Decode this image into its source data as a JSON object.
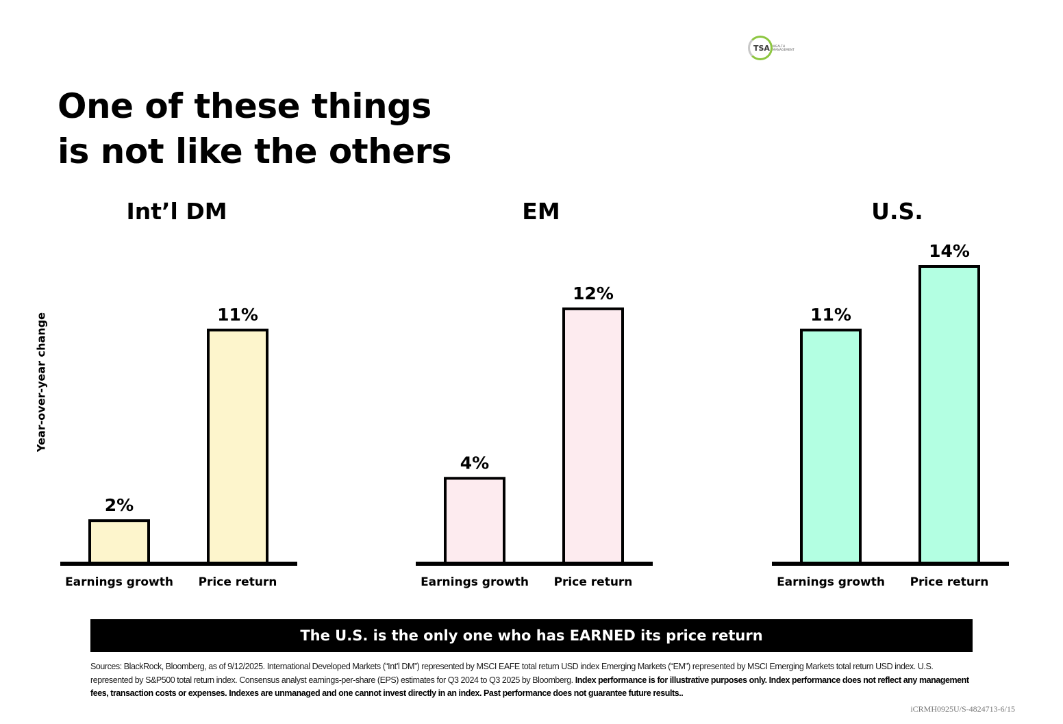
{
  "logo": {
    "text": "TSA",
    "subtext": "WEALTH MANAGEMENT"
  },
  "title": {
    "line1": "One of these things",
    "line2": "is not like the others"
  },
  "y_axis_label": "Year-over-year change",
  "banner": "The U.S. is the only one who has EARNED its price return",
  "sources": {
    "regular": "Sources: BlackRock, Bloomberg, as of 9/12/2025. International Developed Markets (“Int’l DM”) represented by MSCI EAFE total return USD index Emerging Markets (“EM”) represented by MSCI Emerging Markets total return USD index. U.S. represented by S&P500 total return index. Consensus analyst earnings-per-share (EPS) estimates for  Q3 2024 to Q3 2025 by Bloomberg. ",
    "bold": "Index performance is for illustrative purposes only.  Index performance does not reflect any management fees, transaction costs or expenses. Indexes are unmanaged and one cannot invest directly in an index. Past performance does not guarantee future results.."
  },
  "code": "iCRMH0925U/S-4824713-6/15",
  "colors": {
    "intl_dm": "#fdf5cc",
    "em": "#fdebef",
    "us": "#b3ffe2",
    "stroke": "#000000"
  },
  "chart_data": [
    {
      "type": "bar",
      "title": "Int’l DM",
      "categories": [
        "Earnings growth",
        "Price return"
      ],
      "values": [
        2,
        11
      ],
      "value_labels": [
        "2%",
        "11%"
      ],
      "color": "#fdf5cc",
      "ylabel": "Year-over-year change",
      "ylim": [
        0,
        14
      ]
    },
    {
      "type": "bar",
      "title": "EM",
      "categories": [
        "Earnings growth",
        "Price return"
      ],
      "values": [
        4,
        12
      ],
      "value_labels": [
        "4%",
        "12%"
      ],
      "color": "#fdebef",
      "ylim": [
        0,
        14
      ]
    },
    {
      "type": "bar",
      "title": "U.S.",
      "categories": [
        "Earnings growth",
        "Price return"
      ],
      "values": [
        11,
        14
      ],
      "value_labels": [
        "11%",
        "14%"
      ],
      "color": "#b3ffe2",
      "ylim": [
        0,
        14
      ]
    }
  ]
}
